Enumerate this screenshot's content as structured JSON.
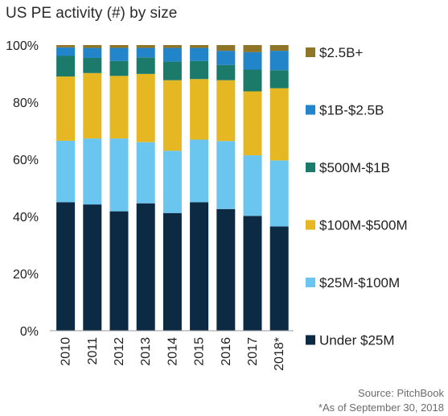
{
  "chart_data": {
    "type": "bar",
    "stacked": true,
    "percent": true,
    "title": "US PE activity (#) by size",
    "xlabel": "",
    "ylabel": "",
    "ylim": [
      0,
      100
    ],
    "yticks": [
      "0%",
      "20%",
      "40%",
      "60%",
      "80%",
      "100%"
    ],
    "categories": [
      "2010",
      "2011",
      "2012",
      "2013",
      "2014",
      "2015",
      "2016",
      "2017",
      "2018*"
    ],
    "series": [
      {
        "name": "Under $25M",
        "color": "#0d2a45",
        "values": [
          45.0,
          44.2,
          41.8,
          44.6,
          41.2,
          45.0,
          42.6,
          40.2,
          36.5
        ]
      },
      {
        "name": "$25M-$100M",
        "color": "#6bc6ef",
        "values": [
          21.5,
          23.1,
          25.5,
          21.4,
          21.8,
          21.9,
          23.8,
          21.2,
          23.1
        ]
      },
      {
        "name": "$100M-$500M",
        "color": "#e5b823",
        "values": [
          22.5,
          22.9,
          21.9,
          23.9,
          24.7,
          21.2,
          21.3,
          22.4,
          25.3
        ]
      },
      {
        "name": "$500M-$1B",
        "color": "#1b7a6a",
        "values": [
          7.2,
          5.3,
          5.2,
          5.8,
          6.5,
          6.3,
          5.3,
          7.6,
          6.3
        ]
      },
      {
        "name": "$1B-$2.5B",
        "color": "#2284c9",
        "values": [
          3.0,
          3.5,
          4.6,
          3.3,
          4.8,
          4.6,
          5.0,
          6.1,
          6.8
        ]
      },
      {
        "name": "$2.5B+",
        "color": "#8e7527",
        "values": [
          0.8,
          1.0,
          1.0,
          1.0,
          1.0,
          1.0,
          2.0,
          2.5,
          2.0
        ]
      }
    ],
    "legend_position": "right",
    "grid": false
  },
  "source": "Source: PitchBook",
  "footnote": "*As of September 30, 2018"
}
